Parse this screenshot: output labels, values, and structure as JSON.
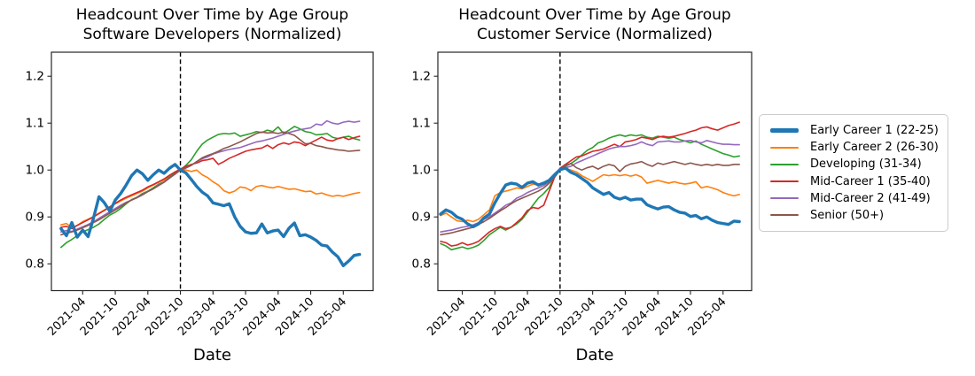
{
  "figure": {
    "background": "#ffffff",
    "legend": {
      "position": "right-outside",
      "entries": [
        {
          "label": "Early Career 1 (22-25)",
          "color": "#1f77b4",
          "thick": true
        },
        {
          "label": "Early Career 2 (26-30)",
          "color": "#ff7f0e",
          "thick": false
        },
        {
          "label": "Developing (31-34)",
          "color": "#2ca02c",
          "thick": false
        },
        {
          "label": "Mid-Career 1 (35-40)",
          "color": "#d62728",
          "thick": false
        },
        {
          "label": "Mid-Career 2 (41-49)",
          "color": "#9467bd",
          "thick": false
        },
        {
          "label": "Senior (50+)",
          "color": "#8c564b",
          "thick": false
        }
      ]
    }
  },
  "chart_data": [
    {
      "type": "line",
      "title_line1": "Headcount Over Time by Age Group",
      "title_line2": "Software Developers (Normalized)",
      "xlabel": "Date",
      "x_start": "2020-12",
      "x_interval": "monthly",
      "x_count": 56,
      "xtick_labels": [
        "2021-04",
        "2021-10",
        "2022-04",
        "2022-10",
        "2023-04",
        "2023-10",
        "2024-04",
        "2024-10",
        "2025-04"
      ],
      "xtick_month_index": [
        4,
        10,
        16,
        22,
        28,
        34,
        40,
        46,
        52
      ],
      "ytick_labels": [
        "0.8",
        "0.9",
        "1.0",
        "1.1",
        "1.2"
      ],
      "ytick_values": [
        0.8,
        0.9,
        1.0,
        1.1,
        1.2
      ],
      "ylim": [
        0.743,
        1.254
      ],
      "grid": false,
      "vline_month_index": 22,
      "vline_date": "2022-10",
      "vline_style": "black-dashed",
      "series": [
        {
          "name": "Early Career 1 (22-25)",
          "color": "#1f77b4",
          "linewidth": 3.4,
          "values": [
            0.875,
            0.86,
            0.888,
            0.857,
            0.872,
            0.858,
            0.898,
            0.943,
            0.93,
            0.912,
            0.936,
            0.95,
            0.968,
            0.988,
            1.0,
            0.992,
            0.978,
            0.99,
            1.0,
            0.993,
            1.004,
            1.012,
            1.0,
            0.994,
            0.98,
            0.965,
            0.953,
            0.945,
            0.93,
            0.927,
            0.924,
            0.928,
            0.9,
            0.88,
            0.868,
            0.865,
            0.866,
            0.885,
            0.866,
            0.87,
            0.872,
            0.858,
            0.876,
            0.887,
            0.86,
            0.862,
            0.857,
            0.85,
            0.84,
            0.838,
            0.825,
            0.815,
            0.796,
            0.806,
            0.818,
            0.82
          ]
        },
        {
          "name": "Early Career 2 (26-30)",
          "color": "#ff7f0e",
          "linewidth": 1.6,
          "values": [
            0.883,
            0.886,
            0.877,
            0.882,
            0.89,
            0.895,
            0.901,
            0.908,
            0.915,
            0.922,
            0.928,
            0.934,
            0.94,
            0.945,
            0.95,
            0.955,
            0.962,
            0.968,
            0.974,
            0.979,
            0.986,
            0.993,
            1.0,
            1.0,
            0.997,
            1.0,
            0.99,
            0.984,
            0.975,
            0.968,
            0.956,
            0.951,
            0.955,
            0.964,
            0.962,
            0.956,
            0.965,
            0.967,
            0.964,
            0.962,
            0.965,
            0.962,
            0.959,
            0.96,
            0.957,
            0.954,
            0.955,
            0.949,
            0.951,
            0.947,
            0.944,
            0.946,
            0.944,
            0.947,
            0.95,
            0.952
          ]
        },
        {
          "name": "Developing (31-34)",
          "color": "#2ca02c",
          "linewidth": 1.6,
          "values": [
            0.835,
            0.845,
            0.852,
            0.86,
            0.868,
            0.873,
            0.878,
            0.885,
            0.895,
            0.904,
            0.91,
            0.918,
            0.928,
            0.937,
            0.942,
            0.95,
            0.955,
            0.962,
            0.97,
            0.975,
            0.985,
            0.994,
            1.0,
            1.01,
            1.022,
            1.04,
            1.055,
            1.064,
            1.07,
            1.076,
            1.078,
            1.077,
            1.079,
            1.072,
            1.075,
            1.078,
            1.082,
            1.08,
            1.085,
            1.082,
            1.092,
            1.078,
            1.085,
            1.093,
            1.088,
            1.082,
            1.08,
            1.075,
            1.076,
            1.078,
            1.07,
            1.067,
            1.07,
            1.072,
            1.067,
            1.064
          ]
        },
        {
          "name": "Mid-Career 1 (35-40)",
          "color": "#d62728",
          "linewidth": 1.6,
          "values": [
            0.878,
            0.88,
            0.875,
            0.882,
            0.888,
            0.894,
            0.9,
            0.907,
            0.914,
            0.921,
            0.929,
            0.936,
            0.942,
            0.947,
            0.952,
            0.957,
            0.964,
            0.969,
            0.975,
            0.981,
            0.989,
            0.996,
            1.002,
            1.008,
            1.012,
            1.015,
            1.02,
            1.022,
            1.025,
            1.012,
            1.018,
            1.025,
            1.03,
            1.035,
            1.04,
            1.043,
            1.045,
            1.047,
            1.053,
            1.046,
            1.054,
            1.058,
            1.055,
            1.06,
            1.058,
            1.052,
            1.058,
            1.064,
            1.07,
            1.064,
            1.062,
            1.067,
            1.07,
            1.065,
            1.069,
            1.072
          ]
        },
        {
          "name": "Mid-Career 2 (41-49)",
          "color": "#9467bd",
          "linewidth": 1.6,
          "values": [
            0.868,
            0.871,
            0.869,
            0.874,
            0.879,
            0.884,
            0.89,
            0.897,
            0.904,
            0.911,
            0.918,
            0.925,
            0.931,
            0.936,
            0.942,
            0.948,
            0.954,
            0.96,
            0.968,
            0.975,
            0.983,
            0.991,
            1.0,
            1.004,
            1.01,
            1.018,
            1.024,
            1.028,
            1.034,
            1.038,
            1.041,
            1.044,
            1.046,
            1.048,
            1.052,
            1.056,
            1.06,
            1.062,
            1.065,
            1.068,
            1.072,
            1.076,
            1.08,
            1.083,
            1.086,
            1.088,
            1.09,
            1.098,
            1.096,
            1.105,
            1.1,
            1.098,
            1.102,
            1.104,
            1.102,
            1.104
          ]
        },
        {
          "name": "Senior (50+)",
          "color": "#8c564b",
          "linewidth": 1.6,
          "values": [
            0.862,
            0.865,
            0.868,
            0.872,
            0.877,
            0.882,
            0.888,
            0.894,
            0.901,
            0.908,
            0.915,
            0.922,
            0.93,
            0.936,
            0.941,
            0.947,
            0.954,
            0.96,
            0.967,
            0.974,
            0.983,
            0.992,
            1.0,
            1.005,
            1.01,
            1.018,
            1.026,
            1.031,
            1.035,
            1.04,
            1.046,
            1.05,
            1.055,
            1.06,
            1.066,
            1.072,
            1.078,
            1.081,
            1.079,
            1.08,
            1.078,
            1.081,
            1.078,
            1.074,
            1.065,
            1.056,
            1.057,
            1.052,
            1.05,
            1.047,
            1.045,
            1.043,
            1.042,
            1.04,
            1.041,
            1.042
          ]
        }
      ]
    },
    {
      "type": "line",
      "title_line1": "Headcount Over Time by Age Group",
      "title_line2": "Customer Service (Normalized)",
      "xlabel": "Date",
      "x_start": "2020-12",
      "x_interval": "monthly",
      "x_count": 56,
      "xtick_labels": [
        "2021-04",
        "2021-10",
        "2022-04",
        "2022-10",
        "2023-04",
        "2023-10",
        "2024-04",
        "2024-10",
        "2025-04"
      ],
      "xtick_month_index": [
        4,
        10,
        16,
        22,
        28,
        34,
        40,
        46,
        52
      ],
      "ytick_labels": [
        "0.8",
        "0.9",
        "1.0",
        "1.1",
        "1.2"
      ],
      "ytick_values": [
        0.8,
        0.9,
        1.0,
        1.1,
        1.2
      ],
      "ylim": [
        0.743,
        1.254
      ],
      "grid": false,
      "vline_month_index": 22,
      "vline_date": "2022-10",
      "vline_style": "black-dashed",
      "series": [
        {
          "name": "Early Career 1 (22-25)",
          "color": "#1f77b4",
          "linewidth": 3.4,
          "values": [
            0.906,
            0.915,
            0.91,
            0.9,
            0.895,
            0.885,
            0.879,
            0.885,
            0.898,
            0.906,
            0.93,
            0.95,
            0.968,
            0.972,
            0.97,
            0.963,
            0.972,
            0.975,
            0.968,
            0.972,
            0.978,
            0.99,
            1.001,
            1.004,
            0.995,
            0.99,
            0.982,
            0.974,
            0.962,
            0.955,
            0.948,
            0.952,
            0.942,
            0.938,
            0.942,
            0.936,
            0.938,
            0.938,
            0.926,
            0.921,
            0.917,
            0.921,
            0.922,
            0.915,
            0.91,
            0.908,
            0.901,
            0.903,
            0.896,
            0.9,
            0.893,
            0.888,
            0.886,
            0.884,
            0.891,
            0.89
          ]
        },
        {
          "name": "Early Career 2 (26-30)",
          "color": "#ff7f0e",
          "linewidth": 1.6,
          "values": [
            0.903,
            0.908,
            0.9,
            0.892,
            0.89,
            0.893,
            0.89,
            0.895,
            0.905,
            0.915,
            0.945,
            0.952,
            0.955,
            0.958,
            0.962,
            0.96,
            0.965,
            0.97,
            0.968,
            0.972,
            0.975,
            0.985,
            1.0,
            1.004,
            1.0,
            0.996,
            0.988,
            0.982,
            0.976,
            0.983,
            0.99,
            0.988,
            0.99,
            0.988,
            0.99,
            0.987,
            0.99,
            0.985,
            0.972,
            0.975,
            0.978,
            0.975,
            0.972,
            0.975,
            0.972,
            0.97,
            0.972,
            0.975,
            0.962,
            0.965,
            0.962,
            0.958,
            0.952,
            0.948,
            0.945,
            0.948
          ]
        },
        {
          "name": "Developing (31-34)",
          "color": "#2ca02c",
          "linewidth": 1.6,
          "values": [
            0.843,
            0.838,
            0.83,
            0.833,
            0.836,
            0.832,
            0.835,
            0.84,
            0.85,
            0.862,
            0.87,
            0.878,
            0.872,
            0.878,
            0.885,
            0.895,
            0.91,
            0.925,
            0.94,
            0.95,
            0.963,
            0.985,
            1.0,
            1.008,
            1.014,
            1.022,
            1.032,
            1.042,
            1.048,
            1.058,
            1.062,
            1.068,
            1.072,
            1.075,
            1.072,
            1.075,
            1.073,
            1.075,
            1.07,
            1.068,
            1.072,
            1.07,
            1.068,
            1.07,
            1.065,
            1.062,
            1.058,
            1.062,
            1.055,
            1.05,
            1.045,
            1.04,
            1.035,
            1.032,
            1.028,
            1.03
          ]
        },
        {
          "name": "Mid-Career 1 (35-40)",
          "color": "#d62728",
          "linewidth": 1.6,
          "values": [
            0.848,
            0.845,
            0.838,
            0.84,
            0.845,
            0.84,
            0.843,
            0.848,
            0.858,
            0.868,
            0.875,
            0.88,
            0.875,
            0.878,
            0.888,
            0.898,
            0.914,
            0.92,
            0.918,
            0.925,
            0.955,
            0.985,
            1.004,
            1.012,
            1.02,
            1.028,
            1.03,
            1.035,
            1.04,
            1.042,
            1.045,
            1.05,
            1.055,
            1.05,
            1.06,
            1.062,
            1.065,
            1.07,
            1.068,
            1.065,
            1.07,
            1.072,
            1.07,
            1.072,
            1.075,
            1.078,
            1.082,
            1.085,
            1.09,
            1.092,
            1.088,
            1.085,
            1.09,
            1.095,
            1.098,
            1.102
          ]
        },
        {
          "name": "Mid-Career 2 (41-49)",
          "color": "#9467bd",
          "linewidth": 1.6,
          "values": [
            0.868,
            0.87,
            0.872,
            0.875,
            0.878,
            0.88,
            0.883,
            0.888,
            0.895,
            0.9,
            0.908,
            0.916,
            0.925,
            0.93,
            0.94,
            0.945,
            0.952,
            0.957,
            0.962,
            0.967,
            0.975,
            0.988,
            1.0,
            1.005,
            1.008,
            1.015,
            1.02,
            1.025,
            1.03,
            1.035,
            1.04,
            1.045,
            1.048,
            1.05,
            1.05,
            1.052,
            1.055,
            1.06,
            1.055,
            1.052,
            1.06,
            1.061,
            1.062,
            1.06,
            1.06,
            1.062,
            1.063,
            1.06,
            1.058,
            1.063,
            1.06,
            1.057,
            1.055,
            1.055,
            1.054,
            1.054
          ]
        },
        {
          "name": "Senior (50+)",
          "color": "#8c564b",
          "linewidth": 1.6,
          "values": [
            0.862,
            0.864,
            0.866,
            0.869,
            0.872,
            0.875,
            0.878,
            0.884,
            0.89,
            0.897,
            0.905,
            0.913,
            0.92,
            0.928,
            0.935,
            0.94,
            0.945,
            0.95,
            0.955,
            0.962,
            0.972,
            0.985,
            1.002,
            1.01,
            1.014,
            1.005,
            1.0,
            1.005,
            1.008,
            1.002,
            1.008,
            1.012,
            1.009,
            0.997,
            1.008,
            1.013,
            1.015,
            1.018,
            1.012,
            1.008,
            1.015,
            1.012,
            1.015,
            1.018,
            1.015,
            1.012,
            1.015,
            1.012,
            1.01,
            1.012,
            1.01,
            1.012,
            1.01,
            1.01,
            1.012,
            1.012
          ]
        }
      ]
    }
  ]
}
